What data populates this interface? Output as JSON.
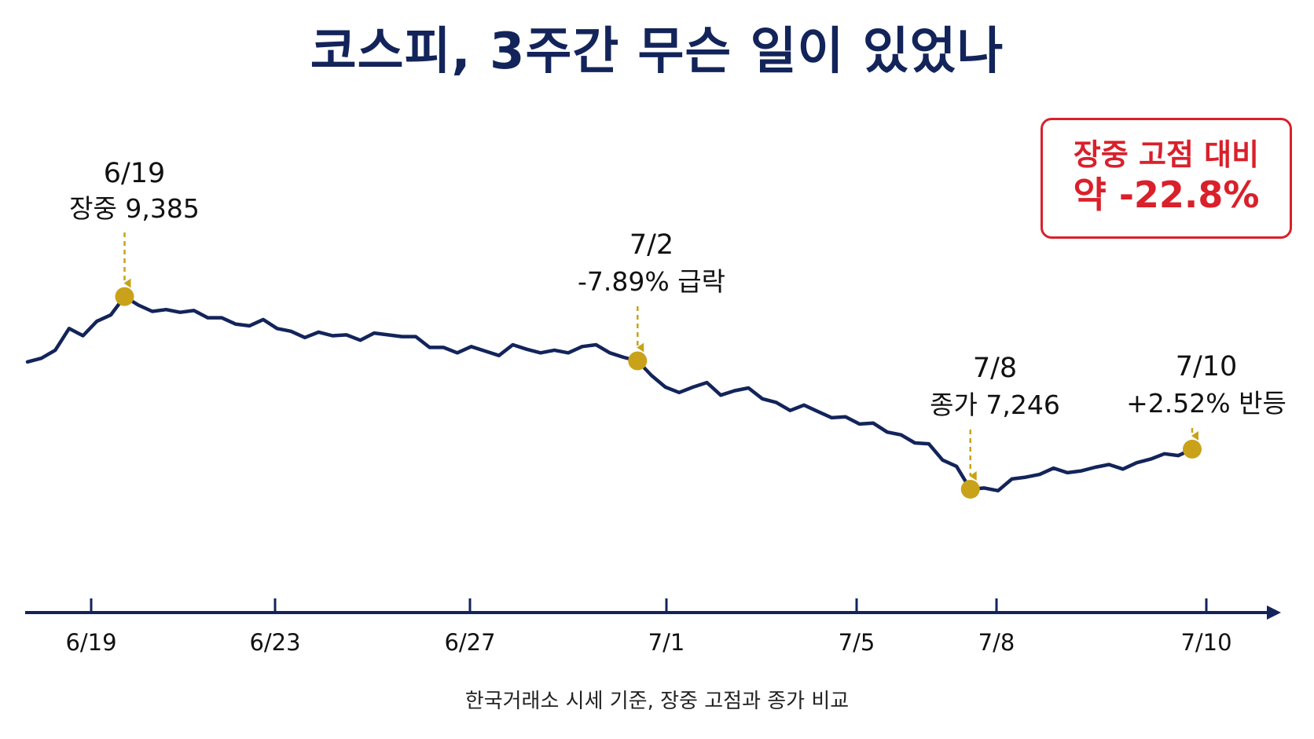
{
  "title": "코스피, 3주간 무슨 일이 있었나",
  "callout": {
    "line1": "장중 고점 대비",
    "line2": "약 -22.8%",
    "color": "#d9202b"
  },
  "footnote": "한국거래소 시세 기준, 장중 고점과 종가 비교",
  "colors": {
    "line": "#13245a",
    "marker": "#c9a21a",
    "axis": "#13245a",
    "accent": "#d9202b"
  },
  "chart_data": {
    "type": "line",
    "x_ticks": [
      "6/19",
      "6/23",
      "6/27",
      "7/1",
      "7/5",
      "7/8",
      "7/10"
    ],
    "series": [
      {
        "values": [
          8660,
          8700,
          8790,
          9030,
          8950,
          9110,
          9180,
          9385,
          9290,
          9220,
          9240,
          9210,
          9230,
          9150,
          9150,
          9080,
          9060,
          9130,
          9030,
          9000,
          8930,
          8990,
          8950,
          8960,
          8900,
          8980,
          8960,
          8940,
          8940,
          8820,
          8820,
          8760,
          8830,
          8780,
          8730,
          8850,
          8800,
          8760,
          8790,
          8760,
          8830,
          8850,
          8760,
          8710,
          8671,
          8510,
          8380,
          8320,
          8380,
          8430,
          8290,
          8340,
          8370,
          8250,
          8210,
          8120,
          8180,
          8110,
          8040,
          8050,
          7970,
          7980,
          7880,
          7850,
          7760,
          7750,
          7570,
          7500,
          7246,
          7260,
          7230,
          7360,
          7380,
          7410,
          7480,
          7430,
          7450,
          7490,
          7520,
          7470,
          7540,
          7580,
          7640,
          7620,
          7691
        ]
      }
    ],
    "annotations": [
      {
        "date_label": "6/19",
        "note": "장중 9,385",
        "value": 9385
      },
      {
        "date_label": "7/2",
        "note": "-7.89% 급락",
        "value": 8671
      },
      {
        "date_label": "7/8",
        "note": "종가 7,246",
        "value": 7246
      },
      {
        "date_label": "7/10",
        "note": "+2.52% 반등",
        "value": 7691
      }
    ],
    "ylim": [
      6400,
      9800
    ],
    "grid": false,
    "legend": "none",
    "xlabel": "",
    "ylabel": ""
  }
}
